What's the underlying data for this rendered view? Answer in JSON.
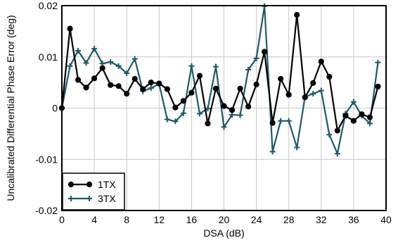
{
  "chart_data": {
    "type": "line",
    "title": "",
    "xlabel": "DSA (dB)",
    "ylabel": "Uncalibrated Differential Phase Error (deg)",
    "xlim": [
      0,
      40
    ],
    "ylim": [
      -0.02,
      0.02
    ],
    "xticks": [
      0,
      4,
      8,
      12,
      16,
      20,
      24,
      28,
      32,
      36,
      40
    ],
    "yticks": [
      -0.02,
      -0.01,
      0,
      0.01,
      0.02
    ],
    "xtick_labels": [
      "0",
      "4",
      "8",
      "12",
      "16",
      "20",
      "24",
      "28",
      "32",
      "36",
      "40"
    ],
    "ytick_labels": [
      "-0.02",
      "-0.01",
      "0",
      "0.01",
      "0.02"
    ],
    "grid": true,
    "legend_position": "bottom-left",
    "x": [
      0,
      1,
      2,
      3,
      4,
      5,
      6,
      7,
      8,
      9,
      10,
      11,
      12,
      13,
      14,
      15,
      16,
      17,
      18,
      19,
      20,
      21,
      22,
      23,
      24,
      25,
      26,
      27,
      28,
      29,
      30,
      31,
      32,
      33,
      34,
      35,
      36,
      37,
      38,
      39
    ],
    "series": [
      {
        "name": "1TX",
        "color": "#000000",
        "marker": "circle",
        "values": [
          0,
          0.0155,
          0.0055,
          0.004,
          0.0058,
          0.0078,
          0.0045,
          0.0043,
          0.0028,
          0.0057,
          0.0037,
          0.005,
          0.0048,
          0.0037,
          0.0001,
          0.0014,
          0.003,
          0.0063,
          -0.003,
          0.0038,
          0.0004,
          -0.0004,
          0.0038,
          0.0003,
          0.0046,
          0.011,
          -0.0029,
          0.0057,
          0.0026,
          0.0182,
          0.0021,
          0.0049,
          0.0091,
          0.0061,
          -0.0044,
          -0.0015,
          -0.0025,
          -0.0012,
          -0.0018,
          0.0042
        ]
      },
      {
        "name": "3TX",
        "color": "#1f5a66",
        "marker": "plus",
        "values": [
          0,
          0.0082,
          0.0112,
          0.0088,
          0.0116,
          0.0087,
          0.009,
          0.0082,
          0.0068,
          0.0096,
          0.0033,
          0.0039,
          0.0047,
          -0.0022,
          -0.0026,
          -0.001,
          0.0082,
          -0.0011,
          -0.0001,
          0.0081,
          -0.0037,
          -0.0013,
          -0.0014,
          0.0075,
          0.0097,
          0.0199,
          -0.0085,
          -0.0025,
          -0.0025,
          -0.0077,
          0.0022,
          0.0028,
          0.0034,
          -0.0052,
          -0.0089,
          -0.0011,
          0.0012,
          -0.0015,
          -0.003,
          0.0089
        ]
      }
    ]
  }
}
